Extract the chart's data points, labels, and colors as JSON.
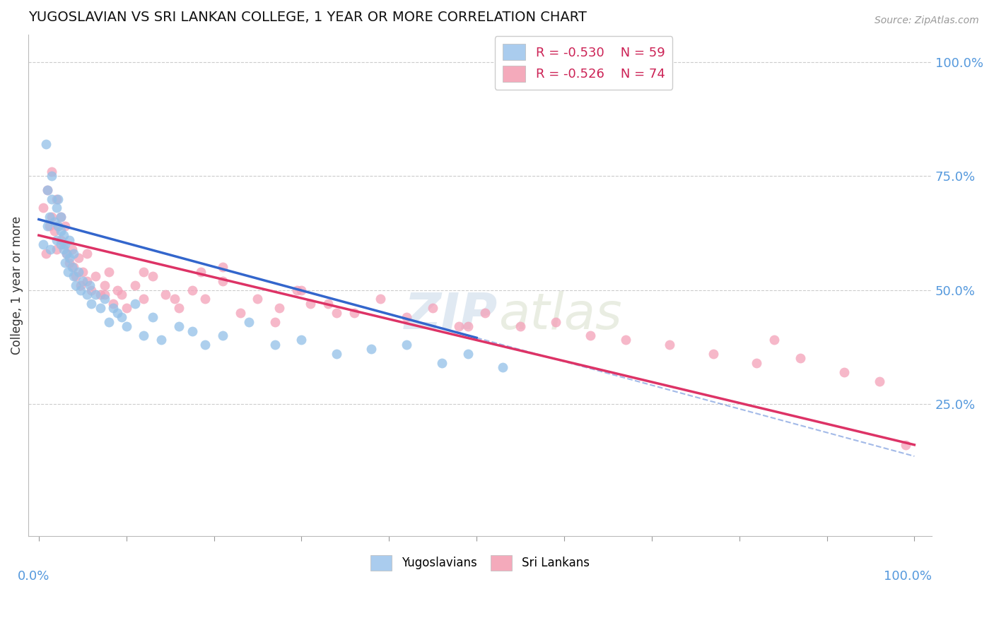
{
  "title": "YUGOSLAVIAN VS SRI LANKAN COLLEGE, 1 YEAR OR MORE CORRELATION CHART",
  "source": "Source: ZipAtlas.com",
  "ylabel": "College, 1 year or more",
  "legend_blue_r": "R = -0.530",
  "legend_blue_n": "N = 59",
  "legend_pink_r": "R = -0.526",
  "legend_pink_n": "N = 74",
  "watermark": "ZIPatlas",
  "blue_color": "#92C0E8",
  "pink_color": "#F4A0B8",
  "blue_line_color": "#3366CC",
  "pink_line_color": "#DD3366",
  "background_color": "#FFFFFF",
  "grid_color": "#CCCCCC",
  "blue_intercept": 0.655,
  "blue_slope": -0.52,
  "pink_intercept": 0.62,
  "pink_slope": -0.46,
  "blue_x": [
    0.005,
    0.008,
    0.01,
    0.01,
    0.012,
    0.013,
    0.015,
    0.015,
    0.018,
    0.02,
    0.02,
    0.022,
    0.022,
    0.025,
    0.025,
    0.025,
    0.028,
    0.028,
    0.03,
    0.03,
    0.032,
    0.033,
    0.035,
    0.035,
    0.038,
    0.04,
    0.04,
    0.042,
    0.045,
    0.048,
    0.05,
    0.055,
    0.058,
    0.06,
    0.065,
    0.07,
    0.075,
    0.08,
    0.085,
    0.09,
    0.095,
    0.1,
    0.11,
    0.12,
    0.13,
    0.14,
    0.16,
    0.175,
    0.19,
    0.21,
    0.24,
    0.27,
    0.3,
    0.34,
    0.38,
    0.42,
    0.46,
    0.49,
    0.53
  ],
  "blue_y": [
    0.6,
    0.82,
    0.64,
    0.72,
    0.66,
    0.59,
    0.7,
    0.75,
    0.65,
    0.61,
    0.68,
    0.64,
    0.7,
    0.6,
    0.63,
    0.66,
    0.59,
    0.62,
    0.56,
    0.6,
    0.58,
    0.54,
    0.61,
    0.57,
    0.55,
    0.53,
    0.58,
    0.51,
    0.54,
    0.5,
    0.52,
    0.49,
    0.51,
    0.47,
    0.49,
    0.46,
    0.48,
    0.43,
    0.46,
    0.45,
    0.44,
    0.42,
    0.47,
    0.4,
    0.44,
    0.39,
    0.42,
    0.41,
    0.38,
    0.4,
    0.43,
    0.38,
    0.39,
    0.36,
    0.37,
    0.38,
    0.34,
    0.36,
    0.33
  ],
  "pink_x": [
    0.005,
    0.008,
    0.01,
    0.012,
    0.015,
    0.015,
    0.018,
    0.02,
    0.02,
    0.022,
    0.025,
    0.025,
    0.028,
    0.03,
    0.032,
    0.035,
    0.038,
    0.04,
    0.042,
    0.045,
    0.048,
    0.05,
    0.055,
    0.06,
    0.065,
    0.07,
    0.075,
    0.08,
    0.085,
    0.09,
    0.095,
    0.1,
    0.11,
    0.12,
    0.13,
    0.145,
    0.16,
    0.175,
    0.19,
    0.21,
    0.23,
    0.25,
    0.275,
    0.3,
    0.33,
    0.36,
    0.39,
    0.42,
    0.45,
    0.48,
    0.51,
    0.55,
    0.59,
    0.63,
    0.67,
    0.72,
    0.77,
    0.82,
    0.87,
    0.92,
    0.96,
    0.99,
    0.295,
    0.21,
    0.34,
    0.12,
    0.155,
    0.185,
    0.27,
    0.31,
    0.075,
    0.055,
    0.49,
    0.84
  ],
  "pink_y": [
    0.68,
    0.58,
    0.72,
    0.64,
    0.66,
    0.76,
    0.63,
    0.7,
    0.59,
    0.64,
    0.61,
    0.66,
    0.6,
    0.64,
    0.58,
    0.56,
    0.59,
    0.55,
    0.53,
    0.57,
    0.51,
    0.54,
    0.52,
    0.5,
    0.53,
    0.49,
    0.51,
    0.54,
    0.47,
    0.5,
    0.49,
    0.46,
    0.51,
    0.48,
    0.53,
    0.49,
    0.46,
    0.5,
    0.48,
    0.52,
    0.45,
    0.48,
    0.46,
    0.5,
    0.47,
    0.45,
    0.48,
    0.44,
    0.46,
    0.42,
    0.45,
    0.42,
    0.43,
    0.4,
    0.39,
    0.38,
    0.36,
    0.34,
    0.35,
    0.32,
    0.3,
    0.16,
    0.5,
    0.55,
    0.45,
    0.54,
    0.48,
    0.54,
    0.43,
    0.47,
    0.49,
    0.58,
    0.42,
    0.39
  ]
}
